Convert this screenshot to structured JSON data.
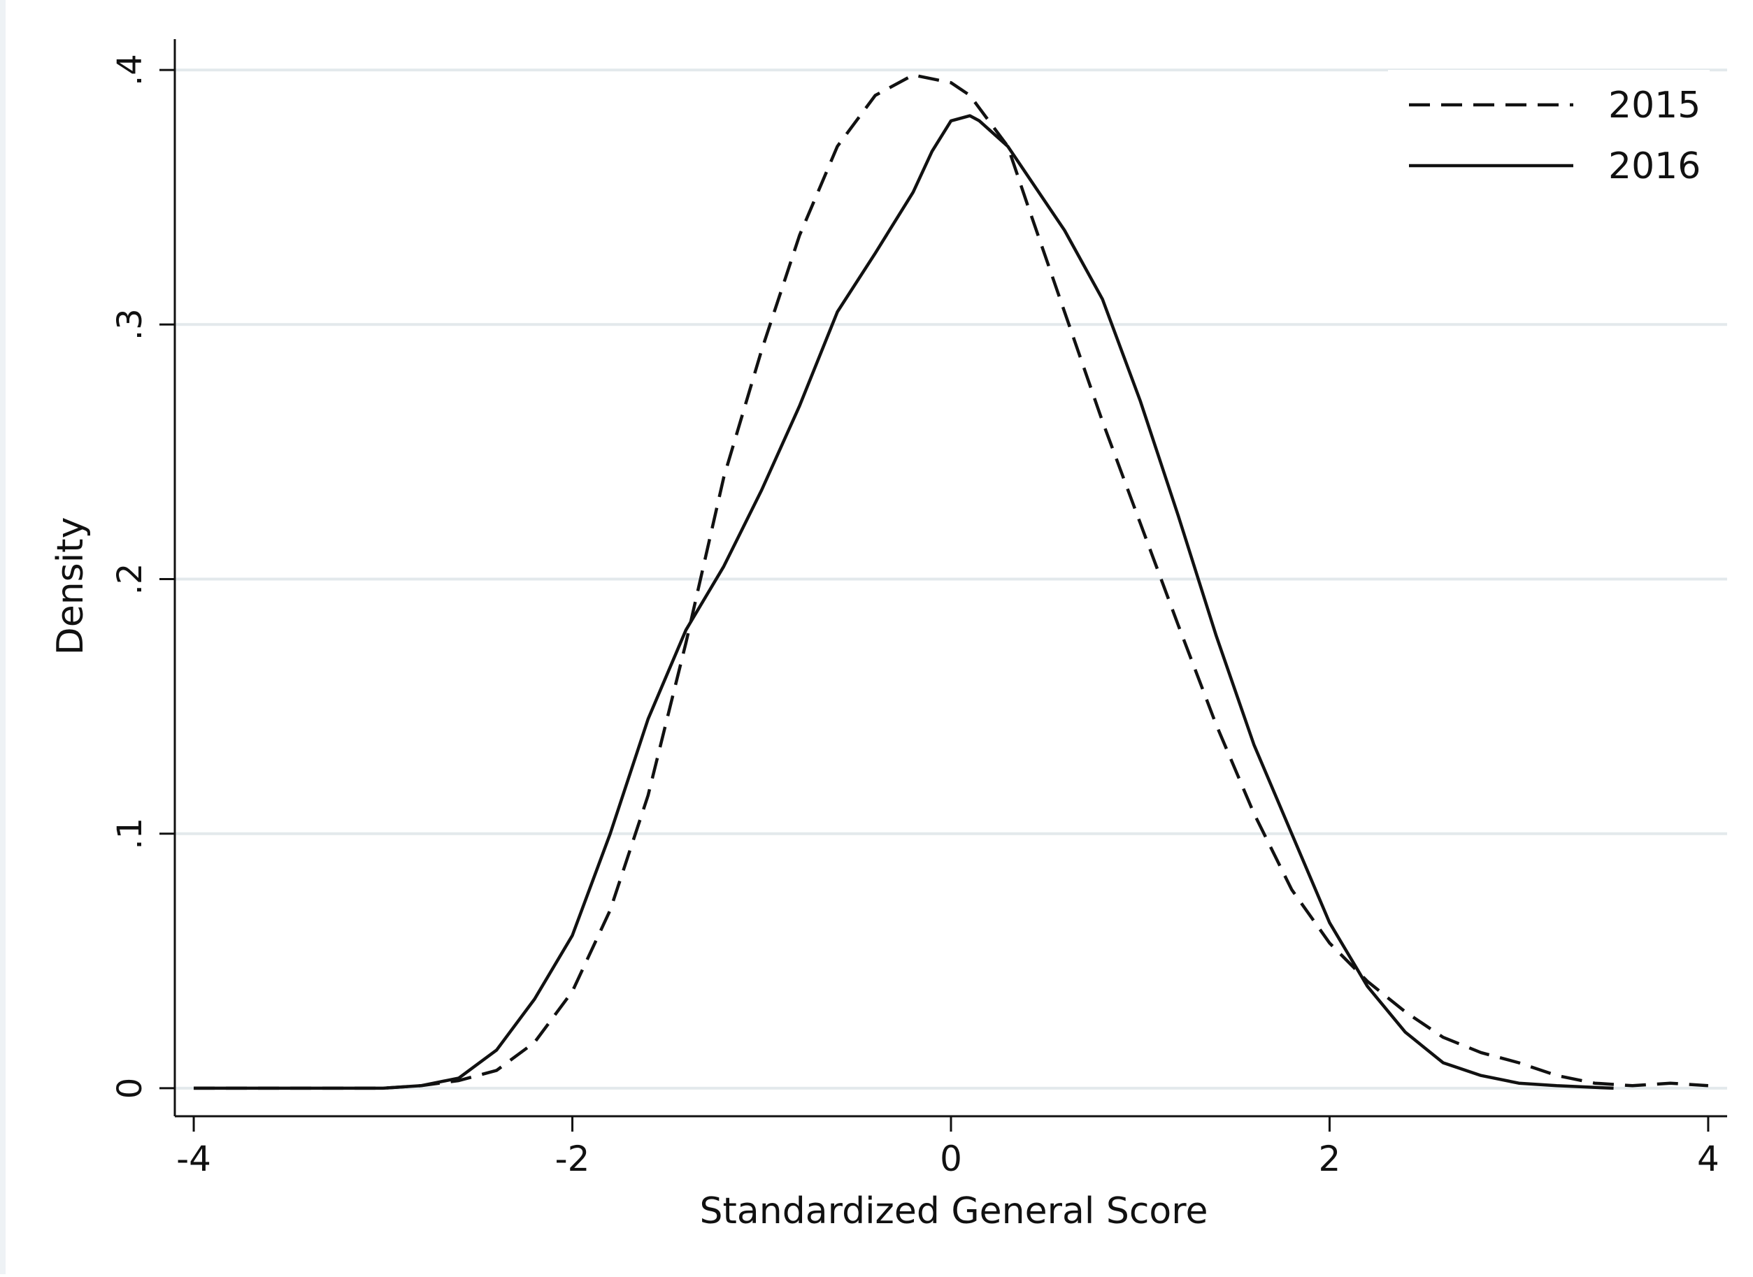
{
  "chart_data": {
    "type": "line",
    "title": "",
    "xlabel": "Standardized General Score",
    "ylabel": "Density",
    "xlim": [
      -4.1,
      4.1
    ],
    "ylim": [
      -0.011,
      0.411
    ],
    "xticks": [
      -4,
      -2,
      0,
      2,
      4
    ],
    "xtick_labels": [
      "-4",
      "-2",
      "0",
      "2",
      "4"
    ],
    "yticks": [
      0,
      0.1,
      0.2,
      0.3,
      0.4
    ],
    "ytick_labels": [
      "0",
      ".1",
      ".2",
      ".3",
      ".4"
    ],
    "grid": "horizontal",
    "legend_position": "top-right",
    "colors": {
      "line": "#111111",
      "grid": "#e3e9ec",
      "axis": "#111111",
      "background": "#ffffff"
    },
    "series": [
      {
        "name": "2015",
        "style": "dashed",
        "x": [
          -4.0,
          -3.0,
          -2.8,
          -2.6,
          -2.4,
          -2.2,
          -2.0,
          -1.8,
          -1.6,
          -1.4,
          -1.2,
          -1.0,
          -0.8,
          -0.6,
          -0.4,
          -0.2,
          0.0,
          0.1,
          0.2,
          0.3,
          0.4,
          0.6,
          0.8,
          1.0,
          1.2,
          1.4,
          1.6,
          1.8,
          2.0,
          2.2,
          2.4,
          2.6,
          2.8,
          3.0,
          3.2,
          3.4,
          3.6,
          3.8,
          4.0
        ],
        "y": [
          0.0,
          0.0,
          0.001,
          0.003,
          0.007,
          0.018,
          0.038,
          0.07,
          0.115,
          0.175,
          0.24,
          0.29,
          0.335,
          0.37,
          0.39,
          0.398,
          0.395,
          0.39,
          0.38,
          0.37,
          0.348,
          0.305,
          0.262,
          0.222,
          0.182,
          0.143,
          0.108,
          0.078,
          0.057,
          0.042,
          0.03,
          0.02,
          0.014,
          0.01,
          0.005,
          0.002,
          0.001,
          0.002,
          0.001
        ]
      },
      {
        "name": "2016",
        "style": "solid",
        "x": [
          -4.0,
          -3.0,
          -2.8,
          -2.6,
          -2.4,
          -2.2,
          -2.0,
          -1.8,
          -1.6,
          -1.4,
          -1.2,
          -1.0,
          -0.8,
          -0.6,
          -0.4,
          -0.2,
          -0.1,
          0.0,
          0.1,
          0.15,
          0.3,
          0.6,
          0.8,
          1.0,
          1.2,
          1.4,
          1.6,
          1.8,
          2.0,
          2.2,
          2.4,
          2.6,
          2.8,
          3.0,
          3.2,
          3.5
        ],
        "y": [
          0.0,
          0.0,
          0.001,
          0.004,
          0.015,
          0.035,
          0.06,
          0.1,
          0.145,
          0.18,
          0.205,
          0.235,
          0.268,
          0.305,
          0.328,
          0.352,
          0.368,
          0.38,
          0.382,
          0.38,
          0.37,
          0.337,
          0.31,
          0.27,
          0.225,
          0.178,
          0.135,
          0.1,
          0.065,
          0.04,
          0.022,
          0.01,
          0.005,
          0.002,
          0.001,
          0.0
        ]
      }
    ]
  }
}
